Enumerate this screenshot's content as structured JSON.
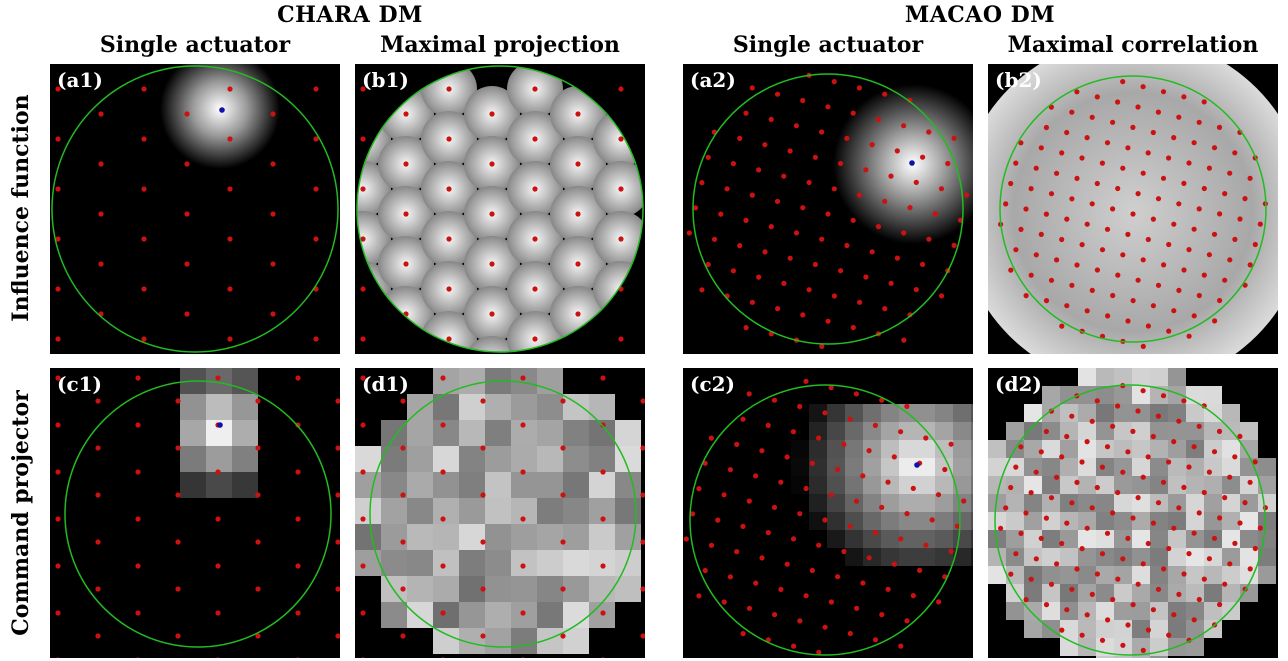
{
  "groups": [
    "CHARA DM",
    "MACAO DM"
  ],
  "columns": [
    "Single actuator",
    "Maximal projection",
    "Single actuator",
    "Maximal correlation"
  ],
  "rows": [
    "Influence function",
    "Command projector"
  ],
  "panels": [
    {
      "id": "a1",
      "label": "(a1)"
    },
    {
      "id": "b1",
      "label": "(b1)"
    },
    {
      "id": "a2",
      "label": "(a2)"
    },
    {
      "id": "b2",
      "label": "(b2)"
    },
    {
      "id": "c1",
      "label": "(c1)"
    },
    {
      "id": "d1",
      "label": "(d1)"
    },
    {
      "id": "c2",
      "label": "(c2)"
    },
    {
      "id": "d2",
      "label": "(d2)"
    }
  ],
  "colors": {
    "background": "#000000",
    "pupil_circle": "#22bb22",
    "actuator": "#cc1111",
    "selected_actuator": "#1111aa"
  }
}
